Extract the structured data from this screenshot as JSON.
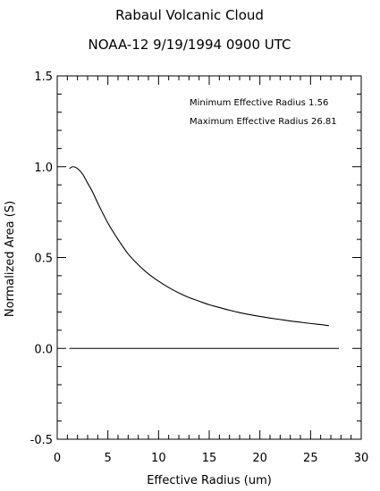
{
  "chart_data": {
    "type": "line",
    "title": "Rabaul Volcanic Cloud",
    "subtitle": "NOAA-12 9/19/1994 0900 UTC",
    "xlabel": "Effective Radius (um)",
    "ylabel": "Normalized Area (S)",
    "xlim": [
      0,
      30
    ],
    "ylim": [
      -0.5,
      1.5
    ],
    "xticks": [
      0,
      5,
      10,
      15,
      20,
      25,
      30
    ],
    "xtick_labels": [
      "0",
      "5",
      "10",
      "15",
      "20",
      "25",
      "30"
    ],
    "yticks": [
      -0.5,
      0.0,
      0.5,
      1.0,
      1.5
    ],
    "ytick_labels": [
      "-0.5",
      "0.0",
      "0.5",
      "1.0",
      "1.5"
    ],
    "grid": false,
    "annotations": [
      "Minimum Effective Radius   1.56",
      "Maximum Effective Radius 26.81"
    ],
    "series": [
      {
        "x": [
          1.2,
          1.56,
          2.0,
          2.5,
          3.0,
          3.5,
          4.0,
          5.0,
          6.0,
          7.0,
          8.0,
          9.0,
          10.0,
          11.0,
          12.0,
          13.0,
          14.0,
          15.0,
          16.0,
          17.0,
          18.0,
          19.0,
          20.0,
          21.0,
          22.0,
          23.0,
          24.0,
          25.0,
          26.0,
          26.81
        ],
        "y": [
          0.99,
          1.0,
          0.99,
          0.96,
          0.91,
          0.86,
          0.8,
          0.69,
          0.6,
          0.52,
          0.46,
          0.41,
          0.37,
          0.335,
          0.305,
          0.28,
          0.26,
          0.24,
          0.225,
          0.21,
          0.197,
          0.186,
          0.176,
          0.167,
          0.159,
          0.151,
          0.144,
          0.137,
          0.131,
          0.125
        ]
      },
      {
        "x": [
          1.2,
          27.8
        ],
        "y": [
          0.0,
          0.0
        ]
      }
    ]
  }
}
